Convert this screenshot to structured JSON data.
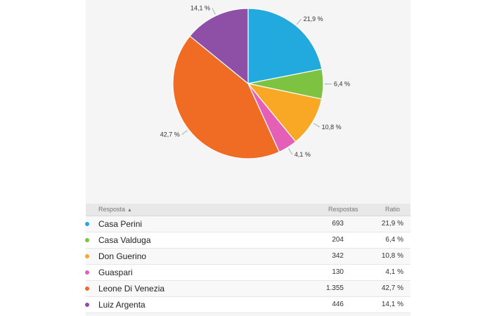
{
  "chart_data": {
    "type": "pie",
    "slices": [
      {
        "label": "Casa Perini",
        "count": "693",
        "value": 21.9,
        "ratio": "21,9 %",
        "color": "#22a9de"
      },
      {
        "label": "Casa Valduga",
        "count": "204",
        "value": 6.4,
        "ratio": "6,4 %",
        "color": "#7ec242"
      },
      {
        "label": "Don Guerino",
        "count": "342",
        "value": 10.8,
        "ratio": "10,8 %",
        "color": "#f9a825"
      },
      {
        "label": "Guaspari",
        "count": "130",
        "value": 4.1,
        "ratio": "4,1 %",
        "color": "#e45fb5"
      },
      {
        "label": "Leone Di Venezia",
        "count": "1.355",
        "value": 42.7,
        "ratio": "42,7 %",
        "color": "#f06b24"
      },
      {
        "label": "Luiz Argenta",
        "count": "446",
        "value": 14.1,
        "ratio": "14,1 %",
        "color": "#8e4fa6"
      }
    ]
  },
  "table": {
    "headers": {
      "name": "Resposta",
      "sort_icon": "sort-ascending-icon",
      "count": "Respostas",
      "ratio": "Ratio"
    }
  }
}
